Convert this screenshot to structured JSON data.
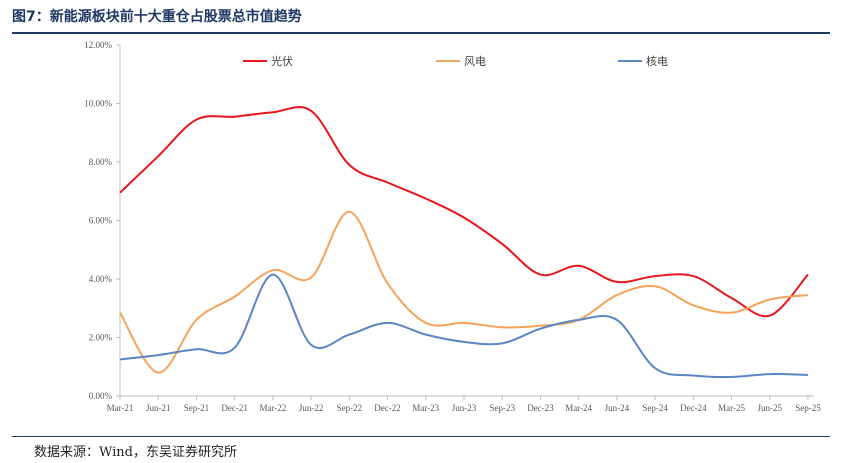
{
  "figure": {
    "title": "图7：新能源板块前十大重仓占股票总市值趋势",
    "source": "数据来源：Wind，东吴证券研究所"
  },
  "chart_data": {
    "type": "line",
    "title": "",
    "xlabel": "",
    "ylabel": "",
    "ylim": [
      0,
      12
    ],
    "y_ticks": [
      "0.00%",
      "2.00%",
      "4.00%",
      "6.00%",
      "8.00%",
      "10.00%",
      "12.00%"
    ],
    "categories": [
      "Mar-21",
      "Jun-21",
      "Sep-21",
      "Dec-21",
      "Mar-22",
      "Jun-22",
      "Sep-22",
      "Dec-22",
      "Mar-23",
      "Jun-23",
      "Sep-23",
      "Dec-23",
      "Mar-24",
      "Jun-24",
      "Sep-24",
      "Dec-24",
      "Mar-25",
      "Jun-25",
      "Sep-25"
    ],
    "legend_position": "top",
    "grid": false,
    "series": [
      {
        "name": "光伏",
        "color": "#e8161b",
        "values": [
          6.95,
          8.2,
          9.45,
          9.55,
          9.7,
          9.75,
          7.9,
          7.3,
          6.75,
          6.1,
          5.2,
          4.15,
          4.45,
          3.9,
          4.1,
          4.1,
          3.35,
          2.75,
          4.15
        ]
      },
      {
        "name": "风电",
        "color": "#f4a35a",
        "values": [
          2.85,
          0.8,
          2.6,
          3.4,
          4.3,
          4.05,
          6.3,
          3.85,
          2.5,
          2.5,
          2.35,
          2.4,
          2.6,
          3.45,
          3.75,
          3.1,
          2.85,
          3.3,
          3.45
        ]
      },
      {
        "name": "核电",
        "color": "#5a86c2",
        "values": [
          1.25,
          1.4,
          1.6,
          1.65,
          4.15,
          1.75,
          2.1,
          2.5,
          2.1,
          1.85,
          1.8,
          2.3,
          2.6,
          2.6,
          0.95,
          0.7,
          0.65,
          0.75,
          0.72
        ]
      }
    ]
  }
}
